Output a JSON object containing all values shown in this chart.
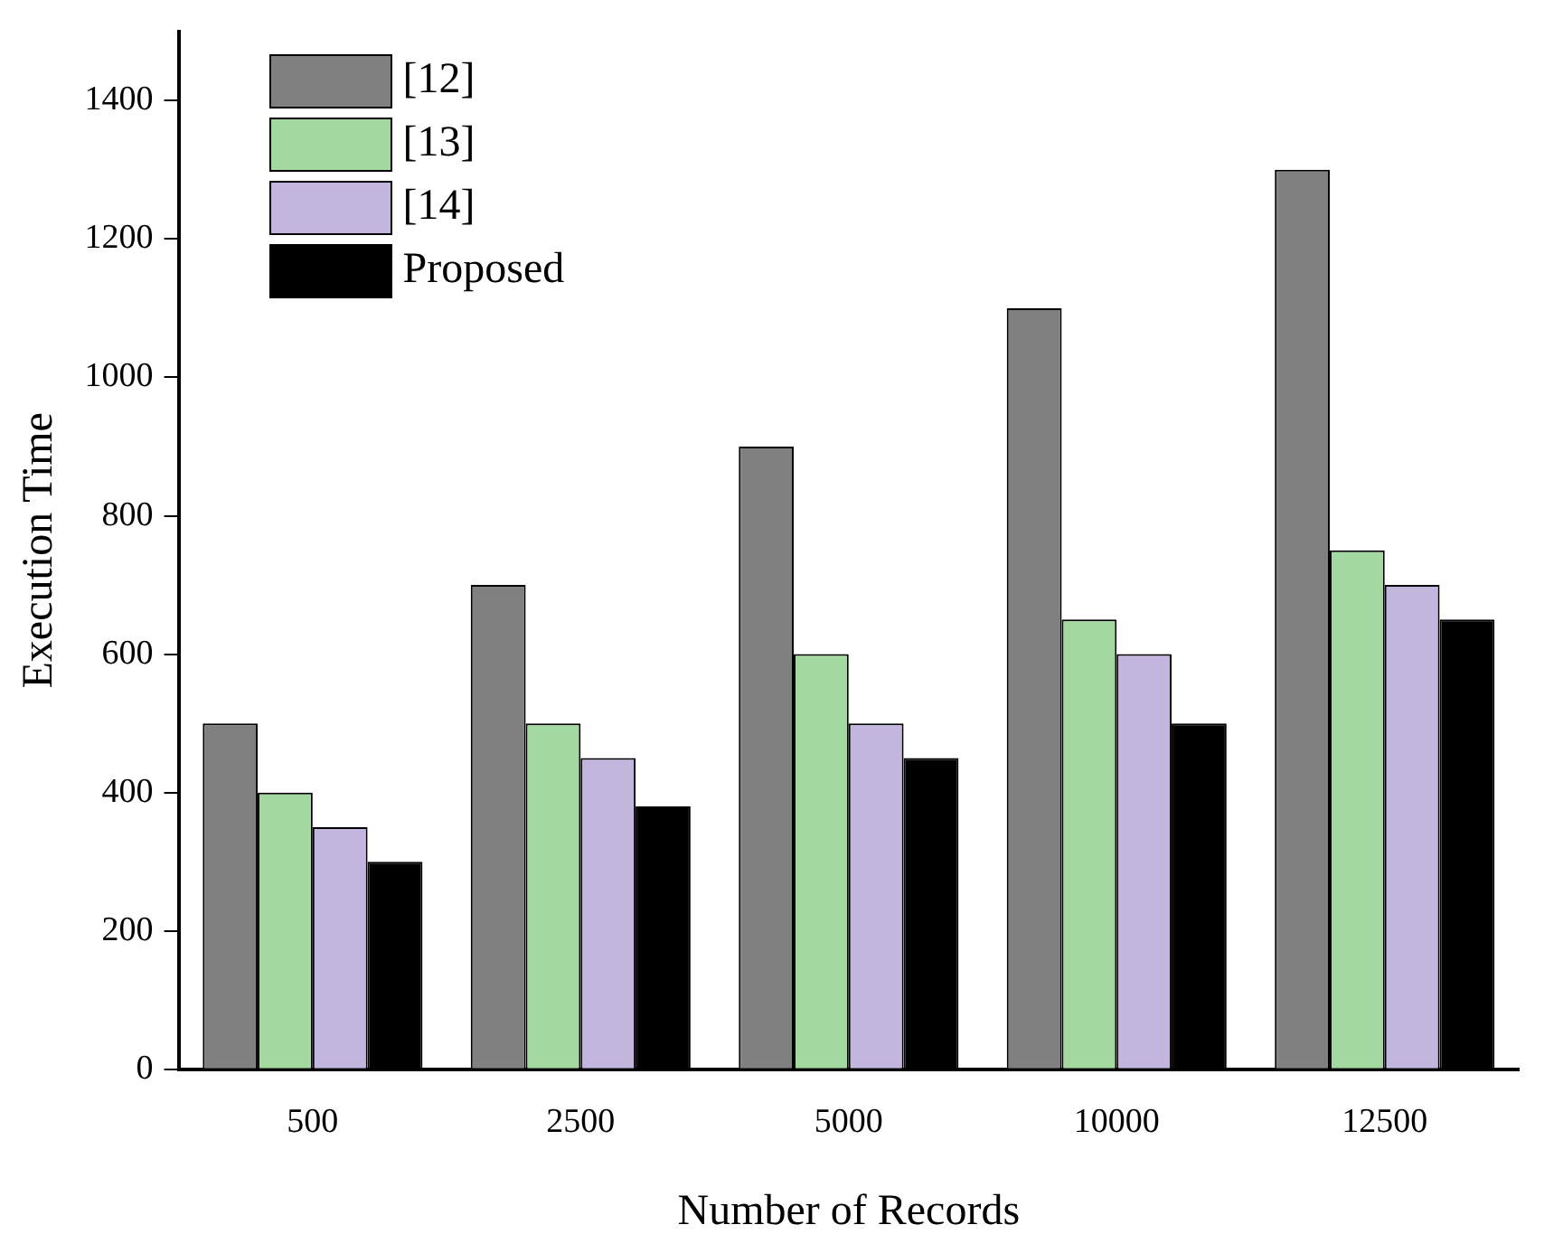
{
  "chart_data": {
    "type": "bar",
    "xlabel": "Number of Records",
    "ylabel": "Execution Time",
    "categories": [
      "500",
      "2500",
      "5000",
      "10000",
      "12500"
    ],
    "series": [
      {
        "name": "[12]",
        "color": "#808080",
        "values": [
          500,
          700,
          900,
          1100,
          1300
        ]
      },
      {
        "name": "[13]",
        "color": "#a3d9a0",
        "values": [
          400,
          500,
          600,
          650,
          750
        ]
      },
      {
        "name": "[14]",
        "color": "#c2b5de",
        "values": [
          350,
          450,
          500,
          600,
          700
        ]
      },
      {
        "name": "Proposed",
        "color": "#000000",
        "values": [
          300,
          380,
          450,
          500,
          650
        ]
      }
    ],
    "ylim": [
      0,
      1500
    ],
    "yticks": [
      0,
      200,
      400,
      600,
      800,
      1000,
      1200,
      1400
    ],
    "grid": false,
    "legend": "top left"
  }
}
